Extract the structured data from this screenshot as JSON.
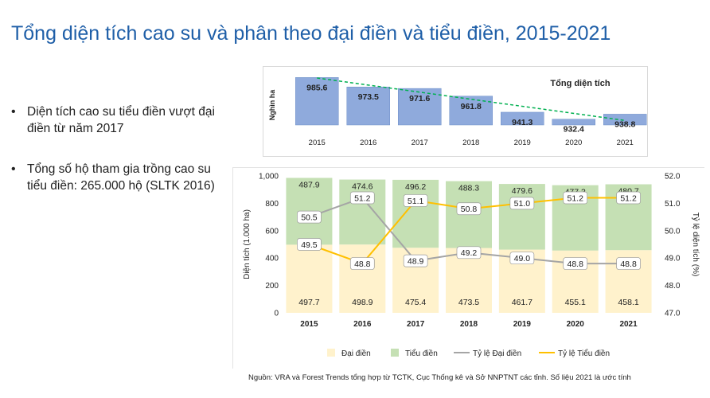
{
  "title": "Tổng diện tích cao su và phân theo đại điền và tiểu điền, 2015-2021",
  "bullets": [
    "Diện tích cao su tiểu điền vượt đại điền từ năm 2017",
    "Tổng số hộ tham gia trồng cao su tiểu điền: 265.000 hộ (SLTK 2016)"
  ],
  "source": "Nguồn: VRA và Forest Trends tổng hợp từ TCTK, Cục Thống kê và Sở NNPTNT các tỉnh. Số liệu 2021 là ước tính",
  "colors": {
    "title": "#1f5fa8",
    "total_bar": "#8faadc",
    "dai_dien": "#fff2cc",
    "tieu_dien": "#c5e0b4",
    "ty_le_dai_dien": "#a5a5a5",
    "ty_le_tieu_dien": "#ffc000",
    "trend": "#00b050"
  },
  "chart_data": [
    {
      "type": "bar",
      "title": "Tổng diện tích",
      "ylabel": "Nghìn ha",
      "categories": [
        "2015",
        "2016",
        "2017",
        "2018",
        "2019",
        "2020",
        "2021"
      ],
      "values": [
        985.6,
        973.5,
        971.6,
        961.8,
        941.3,
        932.4,
        938.8
      ],
      "value_labels": [
        "985.6",
        "973.5",
        "971.6",
        "961.8",
        "941.3",
        "932.4",
        "938.8"
      ],
      "trendline": "linear, dashed",
      "legend": "top-right"
    },
    {
      "type": "bar",
      "stacked": true,
      "categories": [
        "2015",
        "2016",
        "2017",
        "2018",
        "2019",
        "2020",
        "2021"
      ],
      "ylabel": "Diện tích (1.000 ha)",
      "y2label": "Tỷ lệ diện tích (%)",
      "ylim": [
        0,
        1000
      ],
      "y2lim": [
        47.0,
        52.0
      ],
      "yticks": [
        "0",
        "200",
        "400",
        "600",
        "800",
        "1,000"
      ],
      "y2ticks": [
        "47.0",
        "48.0",
        "49.0",
        "50.0",
        "51.0",
        "52.0"
      ],
      "series": [
        {
          "name": "Đại điền",
          "type": "bar",
          "axis": "left",
          "values": [
            497.7,
            498.9,
            475.4,
            473.5,
            461.7,
            455.1,
            458.1
          ],
          "labels": [
            "497.7",
            "498.9",
            "475.4",
            "473.5",
            "461.7",
            "455.1",
            "458.1"
          ]
        },
        {
          "name": "Tiểu điền",
          "type": "bar",
          "axis": "left",
          "values": [
            487.9,
            474.6,
            496.2,
            488.3,
            479.6,
            477.3,
            480.7
          ],
          "labels": [
            "487.9",
            "474.6",
            "496.2",
            "488.3",
            "479.6",
            "477.3",
            "480.7"
          ]
        },
        {
          "name": "Tỷ lệ Đại điền",
          "type": "line",
          "axis": "right",
          "values": [
            50.5,
            51.2,
            48.9,
            49.2,
            49.0,
            48.8,
            48.8
          ],
          "labels": [
            "50.5",
            "51.2",
            "48.9",
            "49.2",
            "49.0",
            "48.8",
            "48.8"
          ]
        },
        {
          "name": "Tỷ lệ Tiểu điền",
          "type": "line",
          "axis": "right",
          "values": [
            49.5,
            48.8,
            51.1,
            50.8,
            51.0,
            51.2,
            51.2
          ],
          "labels": [
            "49.5",
            "48.8",
            "51.1",
            "50.8",
            "51.0",
            "51.2",
            "51.2"
          ]
        }
      ],
      "legend": "bottom"
    }
  ]
}
